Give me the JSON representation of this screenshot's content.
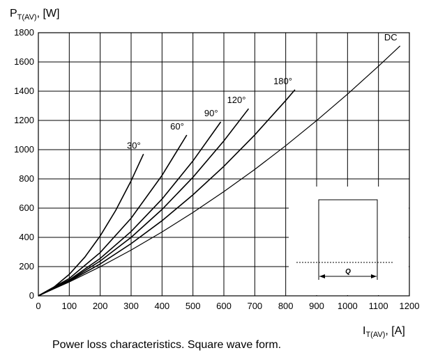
{
  "chart_data": {
    "type": "line",
    "y_label": {
      "main": "P",
      "sub": "T(AV)",
      "unit": ", [W]"
    },
    "x_label": {
      "main": "I",
      "sub": "T(AV)",
      "unit": ", [A]"
    },
    "caption": "Power loss characteristics. Square wave form.",
    "xlim": [
      0,
      1200
    ],
    "ylim": [
      0,
      1800
    ],
    "xticks": [
      0,
      100,
      200,
      300,
      400,
      500,
      600,
      700,
      800,
      900,
      1000,
      1100,
      1200
    ],
    "yticks": [
      0,
      200,
      400,
      600,
      800,
      1000,
      1200,
      1400,
      1600,
      1800
    ],
    "grid": true,
    "series": [
      {
        "name": "30°",
        "color": "#000000",
        "x": [
          0,
          50,
          100,
          150,
          200,
          250,
          300,
          340
        ],
        "values": [
          0,
          59,
          147,
          264,
          410,
          584,
          787,
          970
        ]
      },
      {
        "name": "60°",
        "color": "#000000",
        "x": [
          0,
          100,
          200,
          300,
          400,
          480
        ],
        "values": [
          0,
          119,
          296,
          531,
          824,
          1100
        ]
      },
      {
        "name": "90°",
        "color": "#000000",
        "x": [
          0,
          100,
          200,
          300,
          400,
          500,
          590
        ],
        "values": [
          0,
          109,
          256,
          440,
          662,
          923,
          1190
        ]
      },
      {
        "name": "120°",
        "color": "#000000",
        "x": [
          0,
          100,
          200,
          300,
          400,
          500,
          600,
          680
        ],
        "values": [
          0,
          104,
          238,
          400,
          591,
          811,
          1060,
          1280
        ]
      },
      {
        "name": "180°",
        "color": "#000000",
        "x": [
          0,
          100,
          200,
          300,
          400,
          500,
          600,
          700,
          800,
          830
        ],
        "values": [
          0,
          100,
          218,
          357,
          514,
          691,
          886,
          1101,
          1336,
          1410
        ]
      },
      {
        "name": "DC",
        "color": "#000000",
        "x": [
          0,
          100,
          200,
          300,
          400,
          500,
          600,
          700,
          800,
          900,
          1000,
          1100,
          1170
        ],
        "values": [
          0,
          95,
          199,
          313,
          437,
          570,
          713,
          865,
          1027,
          1199,
          1380,
          1571,
          1710
        ]
      }
    ],
    "inset": {
      "label": "Q"
    }
  }
}
